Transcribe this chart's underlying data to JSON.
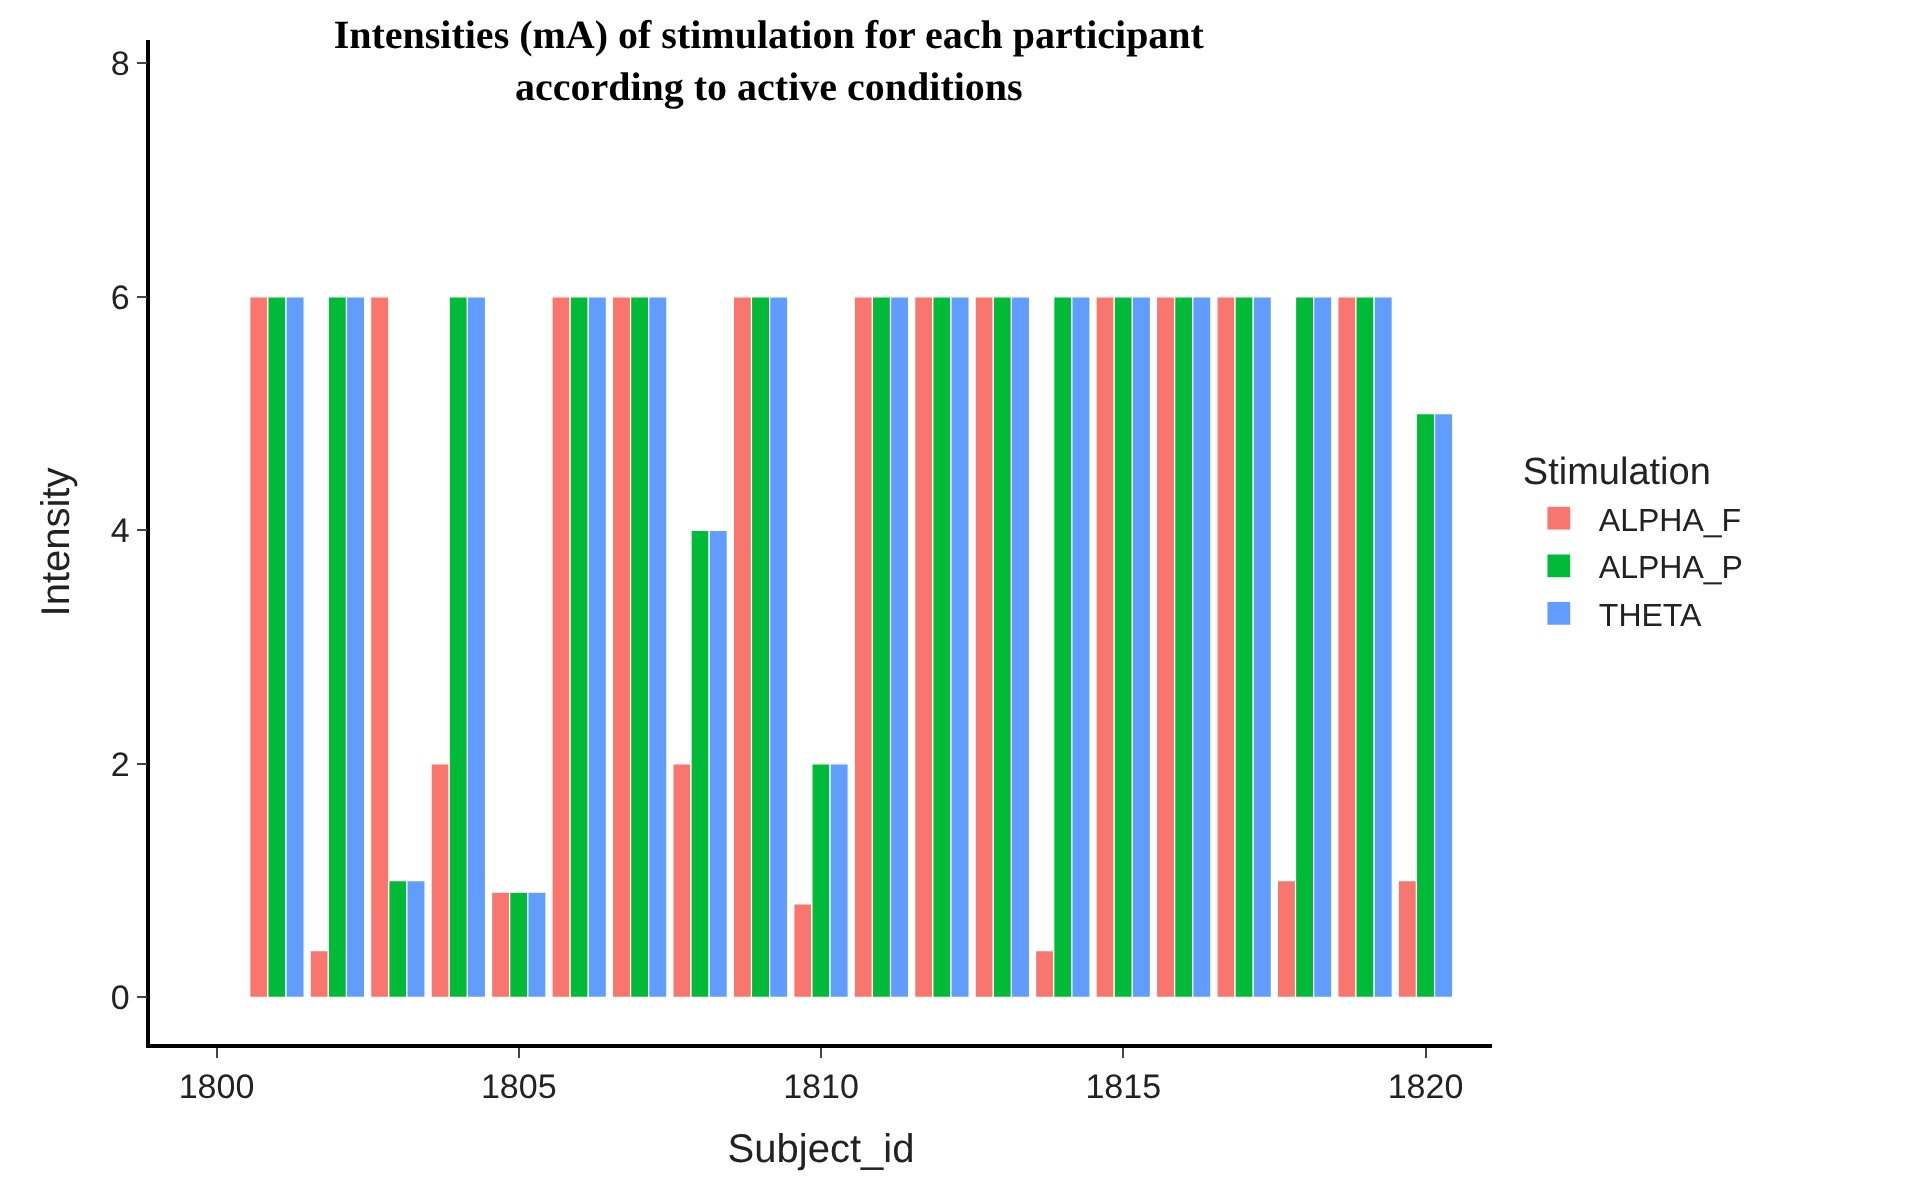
{
  "chart_data": {
    "type": "bar",
    "title": "Intensities (mA) of stimulation for each participant\naccording to active conditions",
    "xlabel": "Subject_id",
    "ylabel": "Intensity",
    "legend_title": "Stimulation",
    "x": [
      1801,
      1802,
      1803,
      1804,
      1805,
      1806,
      1807,
      1808,
      1809,
      1810,
      1811,
      1812,
      1813,
      1814,
      1815,
      1816,
      1817,
      1818,
      1819,
      1820
    ],
    "series": [
      {
        "name": "ALPHA_F",
        "color": "#f8766d",
        "values": [
          6,
          0.4,
          6,
          2,
          0.9,
          6,
          6,
          2,
          6,
          0.8,
          6,
          6,
          6,
          0.4,
          6,
          6,
          6,
          1,
          6,
          1
        ]
      },
      {
        "name": "ALPHA_P",
        "color": "#00ba38",
        "values": [
          6,
          6,
          1,
          6,
          0.9,
          6,
          6,
          4,
          6,
          2,
          6,
          6,
          6,
          6,
          6,
          6,
          6,
          6,
          6,
          5
        ]
      },
      {
        "name": "THETA",
        "color": "#619cff",
        "values": [
          6,
          6,
          1,
          6,
          0.9,
          6,
          6,
          4,
          6,
          2,
          6,
          6,
          6,
          6,
          6,
          6,
          6,
          6,
          6,
          5
        ]
      }
    ],
    "xlim": [
      1798.9,
      1821.1
    ],
    "xticks": [
      1800,
      1805,
      1810,
      1815,
      1820
    ],
    "ylim": [
      -0.4,
      8.2
    ],
    "yticks": [
      0,
      2,
      4,
      6,
      8
    ],
    "legend": "right"
  }
}
